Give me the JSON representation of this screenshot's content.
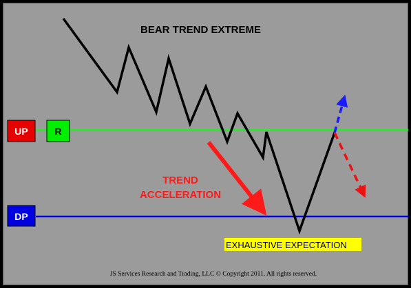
{
  "title": "BEAR TREND EXTREME",
  "labels": {
    "up": "UP",
    "r": "R",
    "dp": "DP",
    "trend_line1": "TREND",
    "trend_line2": "ACCELERATION",
    "exhaustive": "EXHAUSTIVE EXPECTATION",
    "footer": "JS Services Research  and Trading, LLC © Copyright 2011. All rights reserved."
  },
  "colors": {
    "background": "#9b9b9b",
    "up_box": "#e60000",
    "r_box": "#00ee00",
    "dp_box": "#0000e0",
    "up_line": "#22ee22",
    "dp_line": "#0000dd",
    "accel_arrow": "#ff1a1a",
    "exhaustive_highlight": "#ffff00",
    "bullish_arrow": "#1a1aff",
    "bearish_arrow": "#ee1111"
  },
  "icons": {
    "accel_arrow": "solid-red-arrow-down-right",
    "bullish_arrow": "dashed-blue-arrow-up",
    "bearish_arrow": "dashed-red-arrow-down"
  }
}
